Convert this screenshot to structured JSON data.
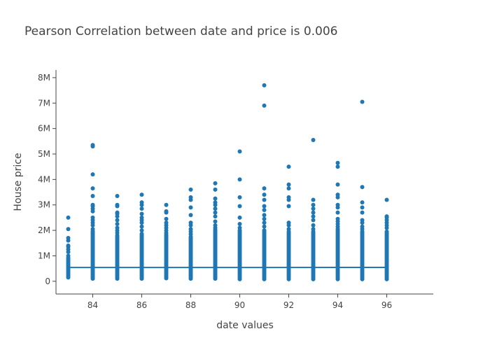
{
  "chart_data": {
    "type": "scatter",
    "title": "Pearson Correlation between date and price is 0.006",
    "xlabel": "date values",
    "ylabel": "House price",
    "xlim": [
      82.5,
      97.9
    ],
    "ylim": [
      -500000,
      8300000
    ],
    "x_ticks": [
      84,
      86,
      88,
      90,
      92,
      94,
      96
    ],
    "x_tick_labels": [
      "84",
      "86",
      "88",
      "90",
      "92",
      "94",
      "96"
    ],
    "y_ticks": [
      0,
      1000000,
      2000000,
      3000000,
      4000000,
      5000000,
      6000000,
      7000000,
      8000000
    ],
    "y_tick_labels": [
      "0",
      "1M",
      "2M",
      "3M",
      "4M",
      "5M",
      "6M",
      "7M",
      "8M"
    ],
    "grid": false,
    "colors": {
      "points": "#1f77b4",
      "fit_line": "#1f77b4",
      "axis": "#444444"
    },
    "series": [
      {
        "type": "scatter",
        "columns": [
          {
            "x": 83,
            "min": 150000,
            "dense_max": 950000,
            "outliers": [
              1000000,
              1150000,
              1250000,
              1350000,
              1400000,
              1600000,
              1700000,
              2050000,
              2500000
            ]
          },
          {
            "x": 84,
            "min": 100000,
            "dense_max": 2000000,
            "outliers": [
              2050000,
              2200000,
              2300000,
              2400000,
              2500000,
              2750000,
              2850000,
              2950000,
              3000000,
              3350000,
              3650000,
              4200000,
              5300000,
              5350000
            ]
          },
          {
            "x": 85,
            "min": 100000,
            "dense_max": 1750000,
            "outliers": [
              1800000,
              1900000,
              2000000,
              2100000,
              2250000,
              2400000,
              2550000,
              2650000,
              2700000,
              2950000,
              3000000,
              3350000
            ]
          },
          {
            "x": 86,
            "min": 100000,
            "dense_max": 1900000,
            "outliers": [
              2000000,
              2150000,
              2300000,
              2400000,
              2500000,
              2650000,
              2850000,
              3000000,
              3100000,
              3400000
            ]
          },
          {
            "x": 87,
            "min": 120000,
            "dense_max": 1850000,
            "outliers": [
              1900000,
              2000000,
              2100000,
              2200000,
              2300000,
              2450000,
              2700000,
              2750000,
              3000000
            ]
          },
          {
            "x": 88,
            "min": 100000,
            "dense_max": 1800000,
            "outliers": [
              1850000,
              1950000,
              2050000,
              2200000,
              2300000,
              2600000,
              2900000,
              3200000,
              3300000,
              3600000
            ]
          },
          {
            "x": 89,
            "min": 100000,
            "dense_max": 2050000,
            "outliers": [
              2100000,
              2200000,
              2350000,
              2550000,
              2700000,
              2850000,
              3000000,
              3100000,
              3250000,
              3600000,
              3850000
            ]
          },
          {
            "x": 90,
            "min": 80000,
            "dense_max": 1950000,
            "outliers": [
              2000000,
              2100000,
              2250000,
              2500000,
              2950000,
              3300000,
              4000000,
              5100000
            ]
          },
          {
            "x": 91,
            "min": 80000,
            "dense_max": 1950000,
            "outliers": [
              2000000,
              2150000,
              2300000,
              2450000,
              2600000,
              2800000,
              2950000,
              3200000,
              3400000,
              3650000,
              6900000,
              7700000
            ]
          },
          {
            "x": 92,
            "min": 80000,
            "dense_max": 1900000,
            "outliers": [
              1950000,
              2050000,
              2200000,
              2300000,
              2950000,
              3200000,
              3300000,
              3650000,
              3800000,
              4500000
            ]
          },
          {
            "x": 93,
            "min": 80000,
            "dense_max": 1900000,
            "outliers": [
              1950000,
              2050000,
              2200000,
              2400000,
              2550000,
              2700000,
              2850000,
              3000000,
              3200000,
              5550000
            ]
          },
          {
            "x": 94,
            "min": 80000,
            "dense_max": 2100000,
            "outliers": [
              2150000,
              2250000,
              2350000,
              2450000,
              2700000,
              2900000,
              3000000,
              3300000,
              3400000,
              3800000,
              4500000,
              4650000
            ]
          },
          {
            "x": 95,
            "min": 80000,
            "dense_max": 1900000,
            "outliers": [
              1950000,
              2050000,
              2150000,
              2300000,
              2400000,
              2700000,
              2900000,
              3100000,
              3700000,
              7050000
            ]
          },
          {
            "x": 96,
            "min": 80000,
            "dense_max": 2000000,
            "outliers": [
              2100000,
              2200000,
              2300000,
              2400000,
              2500000,
              2550000,
              3200000
            ]
          }
        ]
      },
      {
        "type": "line",
        "x": [
          83,
          96
        ],
        "y": [
          540000,
          545000
        ]
      }
    ]
  }
}
